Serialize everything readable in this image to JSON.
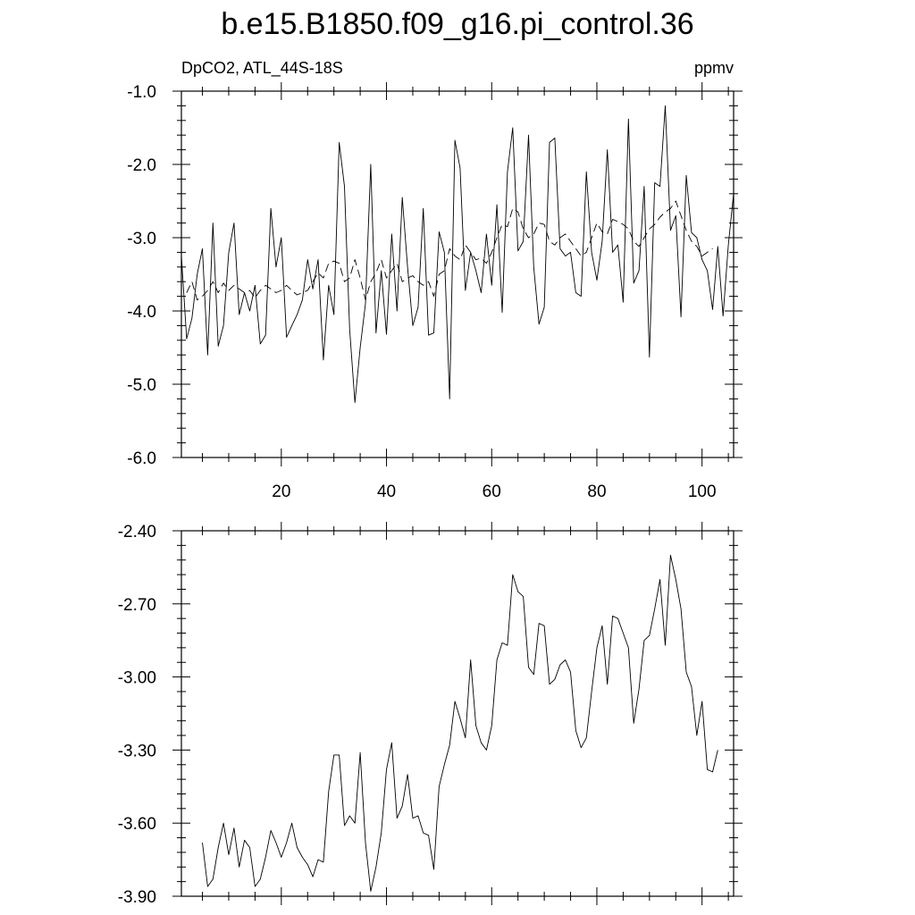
{
  "title": "b.e15.B1850.f09_g16.pi_control.36",
  "chart_data": [
    {
      "type": "line",
      "left_label": "DpCO2, ATL_44S-18S",
      "right_label": "ppmv",
      "xlim": [
        1,
        106
      ],
      "ylim": [
        -6.0,
        -1.0
      ],
      "x_ticks": [
        20,
        40,
        60,
        80,
        100
      ],
      "y_ticks": [
        "-1.0",
        "-2.0",
        "-3.0",
        "-4.0",
        "-5.0",
        "-6.0"
      ],
      "grid": false,
      "legend": "none",
      "series": [
        {
          "style": "solid",
          "x": [
            1,
            2,
            3,
            4,
            5,
            6,
            7,
            8,
            9,
            10,
            11,
            12,
            13,
            14,
            15,
            16,
            17,
            18,
            19,
            20,
            21,
            22,
            23,
            24,
            25,
            26,
            27,
            28,
            29,
            30,
            31,
            32,
            33,
            34,
            35,
            36,
            37,
            38,
            39,
            40,
            41,
            42,
            43,
            44,
            45,
            46,
            47,
            48,
            49,
            50,
            51,
            52,
            53,
            54,
            55,
            56,
            57,
            58,
            59,
            60,
            61,
            62,
            63,
            64,
            65,
            66,
            67,
            68,
            69,
            70,
            71,
            72,
            73,
            74,
            75,
            76,
            77,
            78,
            79,
            80,
            81,
            82,
            83,
            84,
            85,
            86,
            87,
            88,
            89,
            90,
            91,
            92,
            93,
            94,
            95,
            96,
            97,
            98,
            99,
            100,
            101,
            102,
            103,
            104,
            105,
            106
          ],
          "y": [
            -3.25,
            -4.38,
            -4.1,
            -3.5,
            -3.15,
            -4.6,
            -2.8,
            -4.48,
            -4.2,
            -3.2,
            -2.8,
            -4.05,
            -3.75,
            -4.0,
            -3.65,
            -4.45,
            -4.33,
            -2.6,
            -3.4,
            -3.0,
            -4.36,
            -4.2,
            -4.05,
            -3.85,
            -3.3,
            -3.7,
            -3.3,
            -4.67,
            -3.65,
            -4.05,
            -1.7,
            -2.3,
            -4.25,
            -5.25,
            -4.5,
            -3.9,
            -2.0,
            -4.3,
            -3.45,
            -4.32,
            -2.95,
            -4.0,
            -2.45,
            -3.4,
            -4.2,
            -3.95,
            -2.6,
            -4.33,
            -4.3,
            -2.92,
            -3.2,
            -5.2,
            -1.67,
            -2.05,
            -3.72,
            -3.2,
            -3.45,
            -3.75,
            -2.95,
            -3.65,
            -2.55,
            -4.02,
            -2.1,
            -1.5,
            -3.18,
            -3.05,
            -1.6,
            -3.4,
            -4.18,
            -3.95,
            -1.7,
            -1.64,
            -3.15,
            -3.25,
            -3.2,
            -3.75,
            -3.8,
            -2.1,
            -3.2,
            -3.58,
            -3.05,
            -1.8,
            -3.2,
            -3.1,
            -3.88,
            -1.38,
            -3.62,
            -3.45,
            -2.3,
            -4.63,
            -2.25,
            -2.3,
            -1.2,
            -2.9,
            -2.7,
            -4.08,
            -2.15,
            -2.93,
            -3.0,
            -3.3,
            -3.45,
            -3.98,
            -3.12,
            -4.07,
            -3.1,
            -2.4
          ]
        },
        {
          "style": "dashed",
          "x": [
            2,
            3,
            4,
            5,
            6,
            7,
            8,
            9,
            10,
            11,
            12,
            13,
            14,
            15,
            16,
            17,
            18,
            19,
            20,
            21,
            22,
            23,
            24,
            25,
            26,
            27,
            28,
            29,
            30,
            31,
            32,
            33,
            34,
            35,
            36,
            37,
            38,
            39,
            40,
            41,
            42,
            43,
            44,
            45,
            46,
            47,
            48,
            49,
            50,
            51,
            52,
            53,
            54,
            55,
            56,
            57,
            58,
            59,
            60,
            61,
            62,
            63,
            64,
            65,
            66,
            67,
            68,
            69,
            70,
            71,
            72,
            73,
            74,
            75,
            76,
            77,
            78,
            79,
            80,
            81,
            82,
            83,
            84,
            85,
            86,
            87,
            88,
            89,
            90,
            91,
            92,
            93,
            94,
            95,
            96,
            97,
            98,
            99,
            100,
            101,
            102
          ],
          "y": [
            -3.75,
            -3.6,
            -3.85,
            -3.8,
            -3.72,
            -3.6,
            -3.75,
            -3.62,
            -3.72,
            -3.65,
            -3.7,
            -3.75,
            -3.72,
            -3.82,
            -3.72,
            -3.65,
            -3.7,
            -3.75,
            -3.72,
            -3.65,
            -3.72,
            -3.78,
            -3.75,
            -3.72,
            -3.6,
            -3.48,
            -3.55,
            -3.35,
            -3.32,
            -3.35,
            -3.6,
            -3.55,
            -3.3,
            -3.55,
            -3.85,
            -3.6,
            -3.48,
            -3.3,
            -3.55,
            -3.45,
            -3.35,
            -3.6,
            -3.55,
            -3.52,
            -3.6,
            -3.65,
            -3.6,
            -3.8,
            -3.5,
            -3.45,
            -3.15,
            -3.25,
            -3.3,
            -3.1,
            -3.2,
            -3.3,
            -3.28,
            -3.35,
            -3.2,
            -3.0,
            -2.82,
            -2.85,
            -2.6,
            -2.65,
            -2.88,
            -3.0,
            -2.95,
            -2.8,
            -2.82,
            -3.05,
            -3.1,
            -3.0,
            -2.95,
            -3.05,
            -3.15,
            -3.25,
            -3.2,
            -3.0,
            -2.8,
            -2.92,
            -2.95,
            -2.75,
            -2.78,
            -2.82,
            -2.88,
            -3.05,
            -3.12,
            -3.0,
            -2.88,
            -2.82,
            -2.72,
            -2.65,
            -2.6,
            -2.5,
            -2.7,
            -2.9,
            -3.05,
            -3.12,
            -3.25,
            -3.2,
            -3.15
          ]
        }
      ]
    },
    {
      "type": "line",
      "xlim": [
        1,
        106
      ],
      "ylim": [
        -3.9,
        -2.4
      ],
      "y_ticks": [
        "-2.40",
        "-2.70",
        "-3.00",
        "-3.30",
        "-3.60",
        "-3.90"
      ],
      "grid": false,
      "legend": "none",
      "series": [
        {
          "style": "solid",
          "x": [
            5,
            6,
            7,
            8,
            9,
            10,
            11,
            12,
            13,
            14,
            15,
            16,
            17,
            18,
            19,
            20,
            21,
            22,
            23,
            24,
            25,
            26,
            27,
            28,
            29,
            30,
            31,
            32,
            33,
            34,
            35,
            36,
            37,
            38,
            39,
            40,
            41,
            42,
            43,
            44,
            45,
            46,
            47,
            48,
            49,
            50,
            51,
            52,
            53,
            54,
            55,
            56,
            57,
            58,
            59,
            60,
            61,
            62,
            63,
            64,
            65,
            66,
            67,
            68,
            69,
            70,
            71,
            72,
            73,
            74,
            75,
            76,
            77,
            78,
            79,
            80,
            81,
            82,
            83,
            84,
            85,
            86,
            87,
            88,
            89,
            90,
            91,
            92,
            93,
            94,
            95,
            96,
            97,
            98,
            99,
            100,
            101,
            102,
            103
          ],
          "y": [
            -3.68,
            -3.86,
            -3.83,
            -3.7,
            -3.6,
            -3.73,
            -3.62,
            -3.78,
            -3.67,
            -3.7,
            -3.86,
            -3.83,
            -3.74,
            -3.63,
            -3.68,
            -3.74,
            -3.68,
            -3.6,
            -3.7,
            -3.74,
            -3.77,
            -3.82,
            -3.75,
            -3.76,
            -3.47,
            -3.32,
            -3.32,
            -3.61,
            -3.57,
            -3.6,
            -3.31,
            -3.68,
            -3.88,
            -3.78,
            -3.64,
            -3.38,
            -3.27,
            -3.58,
            -3.53,
            -3.4,
            -3.58,
            -3.57,
            -3.64,
            -3.65,
            -3.79,
            -3.45,
            -3.36,
            -3.28,
            -3.1,
            -3.17,
            -3.25,
            -2.93,
            -3.2,
            -3.27,
            -3.3,
            -3.2,
            -2.93,
            -2.86,
            -2.87,
            -2.58,
            -2.65,
            -2.67,
            -2.96,
            -2.99,
            -2.78,
            -2.79,
            -3.03,
            -3.01,
            -2.95,
            -2.93,
            -2.98,
            -3.22,
            -3.29,
            -3.25,
            -3.06,
            -2.88,
            -2.79,
            -3.03,
            -2.75,
            -2.76,
            -2.82,
            -2.88,
            -3.19,
            -3.05,
            -2.85,
            -2.83,
            -2.72,
            -2.6,
            -2.87,
            -2.5,
            -2.6,
            -2.72,
            -2.98,
            -3.04,
            -3.24,
            -3.1,
            -3.38,
            -3.39,
            -3.3
          ]
        }
      ]
    }
  ]
}
